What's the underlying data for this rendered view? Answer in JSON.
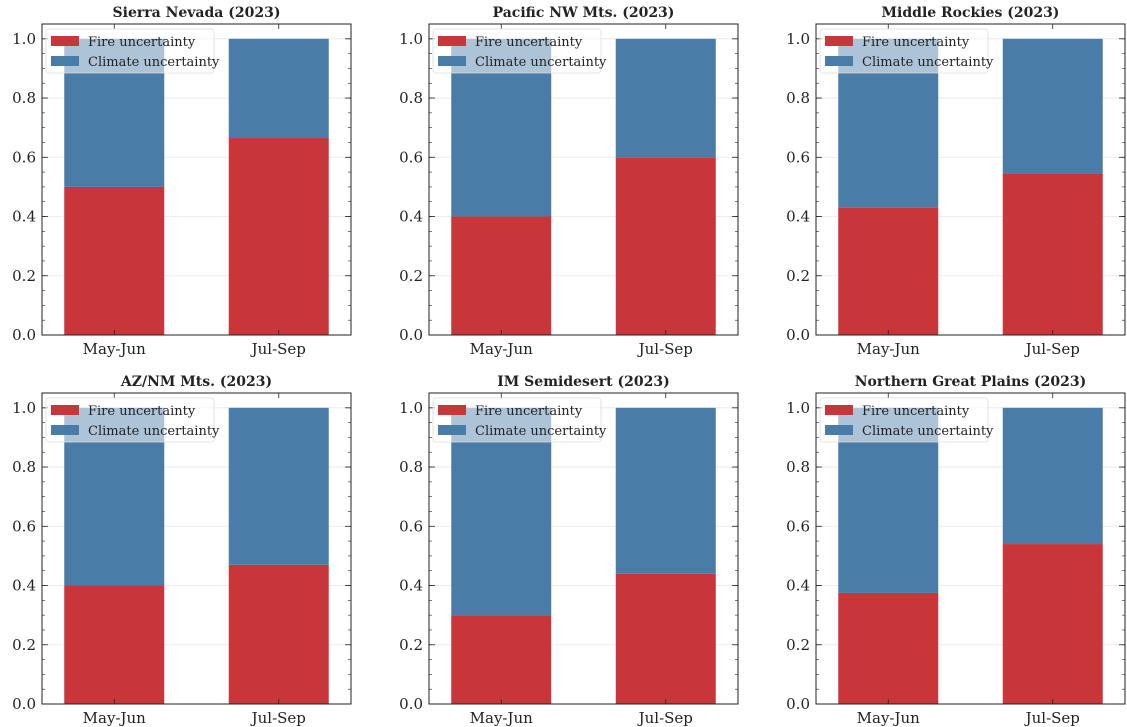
{
  "colors": {
    "fire": "#c9363a",
    "climate": "#4a7ca8",
    "axis": "#222222",
    "grid": "#e6e6e6",
    "text": "#222222"
  },
  "chart_data": [
    {
      "type": "bar",
      "stacked": true,
      "title": "Sierra Nevada (2023)",
      "categories": [
        "May-Jun",
        "Jul-Sep"
      ],
      "series": [
        {
          "name": "Fire uncertainty",
          "values": [
            0.5,
            0.665
          ]
        },
        {
          "name": "Climate uncertainty",
          "values": [
            0.5,
            0.335
          ]
        }
      ],
      "ylim": [
        0,
        1.05
      ],
      "yticks": [
        "0.0",
        "0.2",
        "0.4",
        "0.6",
        "0.8",
        "1.0"
      ],
      "grid": true,
      "legend_loc": "top-left"
    },
    {
      "type": "bar",
      "stacked": true,
      "title": "Pacific NW Mts. (2023)",
      "categories": [
        "May-Jun",
        "Jul-Sep"
      ],
      "series": [
        {
          "name": "Fire uncertainty",
          "values": [
            0.4,
            0.6
          ]
        },
        {
          "name": "Climate uncertainty",
          "values": [
            0.6,
            0.4
          ]
        }
      ],
      "ylim": [
        0,
        1.05
      ],
      "yticks": [
        "0.0",
        "0.2",
        "0.4",
        "0.6",
        "0.8",
        "1.0"
      ],
      "grid": true,
      "legend_loc": "top-left"
    },
    {
      "type": "bar",
      "stacked": true,
      "title": "Middle Rockies (2023)",
      "categories": [
        "May-Jun",
        "Jul-Sep"
      ],
      "series": [
        {
          "name": "Fire uncertainty",
          "values": [
            0.43,
            0.545
          ]
        },
        {
          "name": "Climate uncertainty",
          "values": [
            0.57,
            0.455
          ]
        }
      ],
      "ylim": [
        0,
        1.05
      ],
      "yticks": [
        "0.0",
        "0.2",
        "0.4",
        "0.6",
        "0.8",
        "1.0"
      ],
      "grid": true,
      "legend_loc": "top-left"
    },
    {
      "type": "bar",
      "stacked": true,
      "title": "AZ/NM Mts. (2023)",
      "categories": [
        "May-Jun",
        "Jul-Sep"
      ],
      "series": [
        {
          "name": "Fire uncertainty",
          "values": [
            0.4,
            0.47
          ]
        },
        {
          "name": "Climate uncertainty",
          "values": [
            0.6,
            0.53
          ]
        }
      ],
      "ylim": [
        0,
        1.05
      ],
      "yticks": [
        "0.0",
        "0.2",
        "0.4",
        "0.6",
        "0.8",
        "1.0"
      ],
      "grid": true,
      "legend_loc": "top-left"
    },
    {
      "type": "bar",
      "stacked": true,
      "title": "IM Semidesert (2023)",
      "categories": [
        "May-Jun",
        "Jul-Sep"
      ],
      "series": [
        {
          "name": "Fire uncertainty",
          "values": [
            0.3,
            0.44
          ]
        },
        {
          "name": "Climate uncertainty",
          "values": [
            0.7,
            0.56
          ]
        }
      ],
      "ylim": [
        0,
        1.05
      ],
      "yticks": [
        "0.0",
        "0.2",
        "0.4",
        "0.6",
        "0.8",
        "1.0"
      ],
      "grid": true,
      "legend_loc": "top-left"
    },
    {
      "type": "bar",
      "stacked": true,
      "title": "Northern Great Plains (2023)",
      "categories": [
        "May-Jun",
        "Jul-Sep"
      ],
      "series": [
        {
          "name": "Fire uncertainty",
          "values": [
            0.375,
            0.54
          ]
        },
        {
          "name": "Climate uncertainty",
          "values": [
            0.625,
            0.46
          ]
        }
      ],
      "ylim": [
        0,
        1.05
      ],
      "yticks": [
        "0.0",
        "0.2",
        "0.4",
        "0.6",
        "0.8",
        "1.0"
      ],
      "grid": true,
      "legend_loc": "top-left"
    }
  ]
}
